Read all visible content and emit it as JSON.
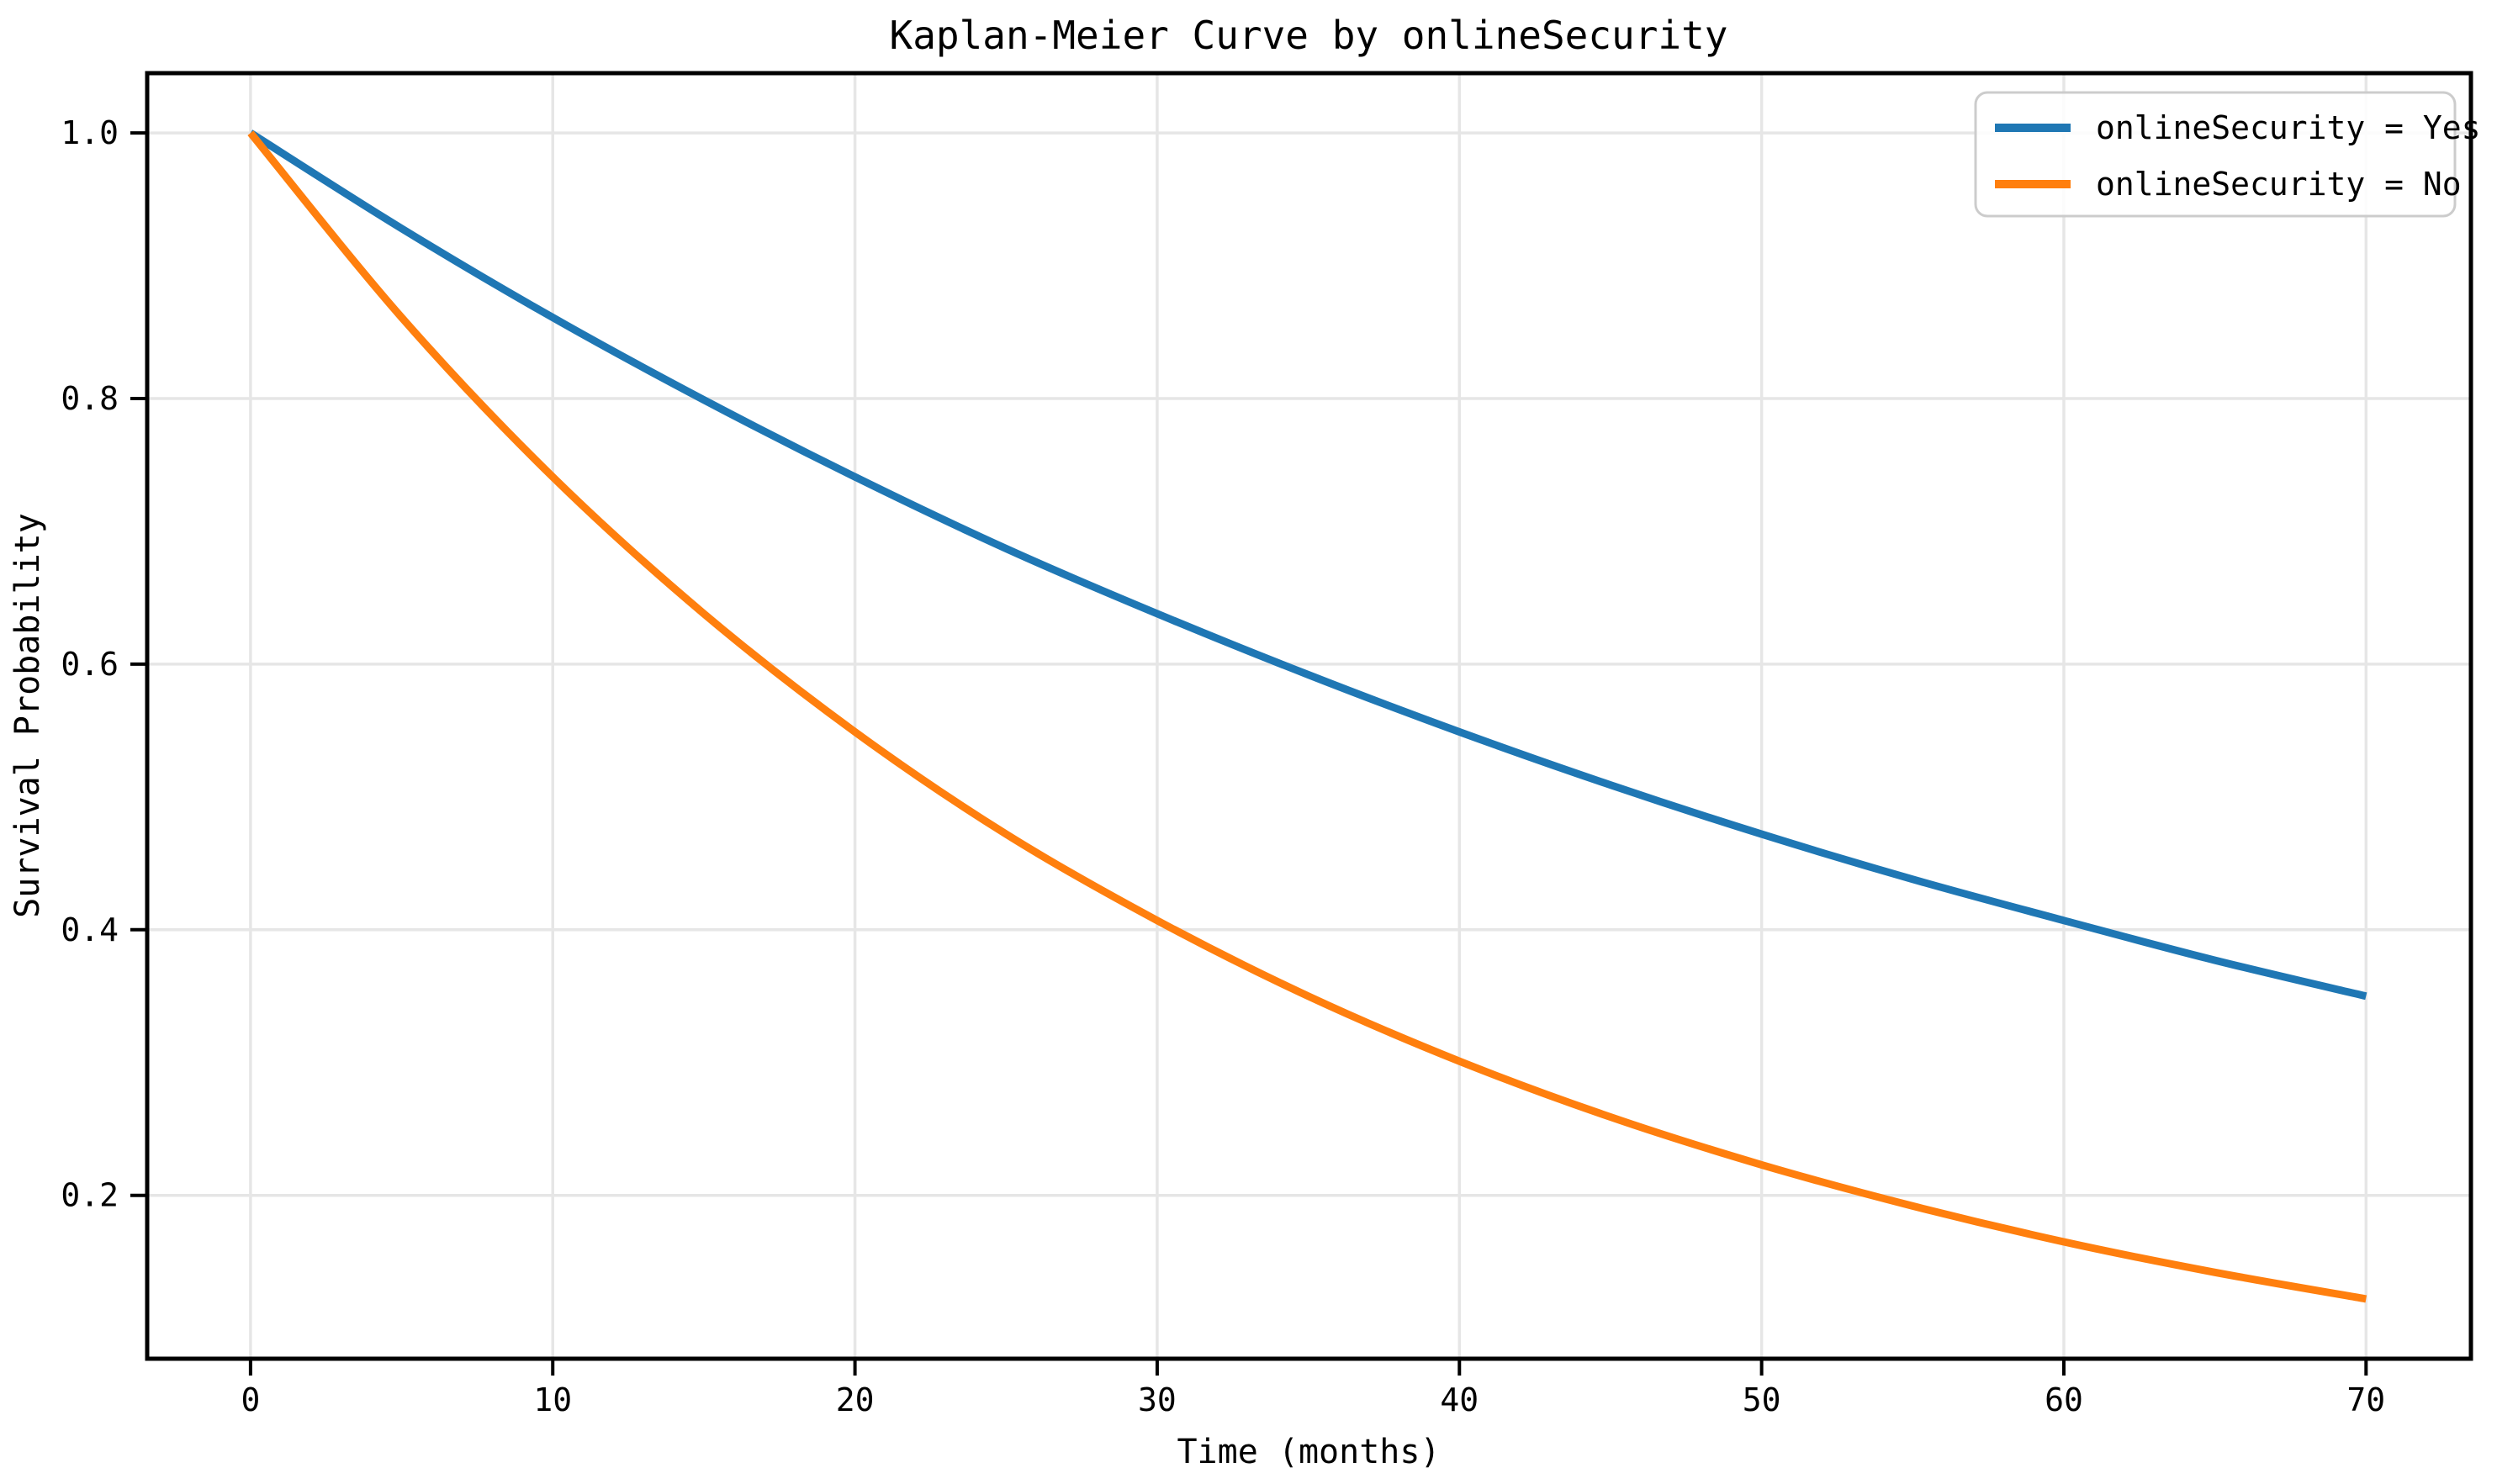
{
  "figure": {
    "background": "#ffffff",
    "text_color": "#000000",
    "grid_color": "#e6e6e6",
    "spine_color": "#000000",
    "legend_border_color": "#cccccc"
  },
  "chart_data": {
    "type": "line",
    "title": "Kaplan-Meier Curve by onlineSecurity",
    "xlabel": "Time (months)",
    "ylabel": "Survival Probability",
    "x": [
      0,
      5,
      10,
      15,
      20,
      25,
      30,
      35,
      40,
      45,
      50,
      55,
      60,
      65,
      70
    ],
    "series": [
      {
        "name": "onlineSecurity = Yes",
        "color": "#1f77b4",
        "values": [
          1.0,
          0.928,
          0.861,
          0.799,
          0.741,
          0.687,
          0.638,
          0.592,
          0.549,
          0.509,
          0.472,
          0.438,
          0.407,
          0.377,
          0.35
        ]
      },
      {
        "name": "onlineSecurity = No",
        "color": "#ff7f0e",
        "values": [
          1.0,
          0.861,
          0.741,
          0.638,
          0.549,
          0.472,
          0.407,
          0.35,
          0.301,
          0.259,
          0.223,
          0.192,
          0.165,
          0.142,
          0.122
        ]
      }
    ],
    "xlim": [
      -3.42,
      73.47
    ],
    "ylim": [
      0.077,
      1.045
    ],
    "xticks": [
      0,
      10,
      20,
      30,
      40,
      50,
      60,
      70
    ],
    "yticks": [
      0.2,
      0.4,
      0.6,
      0.8,
      1.0
    ],
    "xtick_labels": [
      "0",
      "10",
      "20",
      "30",
      "40",
      "50",
      "60",
      "70"
    ],
    "ytick_labels": [
      "0.2",
      "0.4",
      "0.6",
      "0.8",
      "1.0"
    ],
    "grid": true,
    "legend_position": "upper right"
  }
}
